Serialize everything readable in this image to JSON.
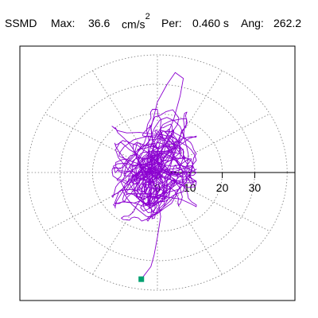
{
  "header": {
    "name": "SSMD",
    "max_label": "Max:",
    "max_value": "36.6",
    "max_unit": "cm/s",
    "max_unit_power": "2",
    "per_label": "Per:",
    "per_value": "0.460 s",
    "ang_label": "Ang:",
    "ang_value": "262.2"
  },
  "chart_data": {
    "type": "scatter",
    "title": "",
    "xlabel": "",
    "ylabel": "",
    "polar_rings": [
      10,
      20,
      30,
      40
    ],
    "radial_spokes_deg": [
      0,
      30,
      60,
      90,
      120,
      150,
      180,
      210,
      240,
      270,
      300,
      330
    ],
    "tick_labels": [
      "0",
      "10",
      "20",
      "30"
    ],
    "xlim": [
      -43,
      43
    ],
    "ylim": [
      -38,
      38
    ],
    "grid": true,
    "trace_color": "#8b00d0",
    "marker_color": "#00a070",
    "peak": {
      "value": 36.6,
      "angle_deg": 262.2
    },
    "trace_seed": 7
  }
}
